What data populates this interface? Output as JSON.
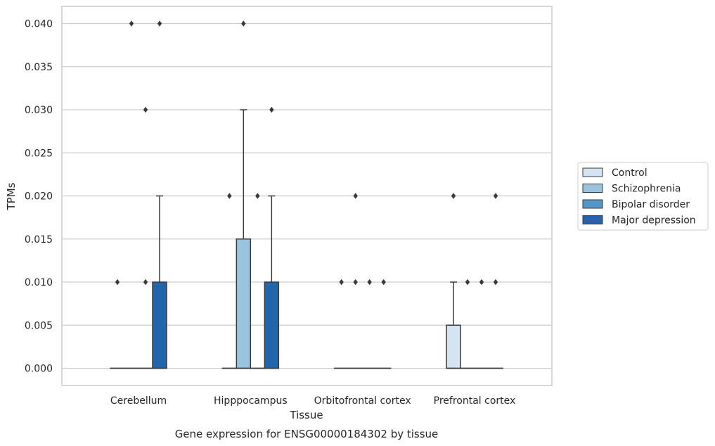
{
  "chart_data": {
    "type": "boxplot",
    "xlabel": "Tissue",
    "ylabel": "TPMs",
    "caption": "Gene expression for ENSG00000184302 by tissue",
    "ylim": [
      -0.002,
      0.042
    ],
    "yticks": [
      0.0,
      0.005,
      0.01,
      0.015,
      0.02,
      0.025,
      0.03,
      0.035,
      0.04
    ],
    "ytick_labels": [
      "0.000",
      "0.005",
      "0.010",
      "0.015",
      "0.020",
      "0.025",
      "0.030",
      "0.035",
      "0.040"
    ],
    "grid": true,
    "legend_position": "right",
    "categories": [
      "Cerebellum",
      "Hipppocampus",
      "Orbitofrontal cortex",
      "Prefrontal cortex"
    ],
    "series": [
      {
        "name": "Control",
        "color": "#d4e4f3"
      },
      {
        "name": "Schizophrenia",
        "color": "#9ac4de"
      },
      {
        "name": "Bipolar disorder",
        "color": "#5497c8"
      },
      {
        "name": "Major depression",
        "color": "#2166ac"
      }
    ],
    "boxes": [
      [
        {
          "q1": 0,
          "median": 0,
          "q3": 0,
          "whisker_low": 0,
          "whisker_high": 0,
          "outliers": [
            0.01
          ]
        },
        {
          "q1": 0,
          "median": 0,
          "q3": 0,
          "whisker_low": 0,
          "whisker_high": 0,
          "outliers": [
            0.04
          ]
        },
        {
          "q1": 0,
          "median": 0,
          "q3": 0,
          "whisker_low": 0,
          "whisker_high": 0,
          "outliers": [
            0.01,
            0.03
          ]
        },
        {
          "q1": 0,
          "median": 0,
          "q3": 0.01,
          "whisker_low": 0,
          "whisker_high": 0.02,
          "outliers": [
            0.04
          ]
        }
      ],
      [
        {
          "q1": 0,
          "median": 0,
          "q3": 0,
          "whisker_low": 0,
          "whisker_high": 0,
          "outliers": [
            0.02
          ]
        },
        {
          "q1": 0,
          "median": 0,
          "q3": 0.015,
          "whisker_low": 0,
          "whisker_high": 0.03,
          "outliers": [
            0.04
          ]
        },
        {
          "q1": 0,
          "median": 0,
          "q3": 0,
          "whisker_low": 0,
          "whisker_high": 0,
          "outliers": [
            0.02
          ]
        },
        {
          "q1": 0,
          "median": 0,
          "q3": 0.01,
          "whisker_low": 0,
          "whisker_high": 0.02,
          "outliers": [
            0.03
          ]
        }
      ],
      [
        {
          "q1": 0,
          "median": 0,
          "q3": 0,
          "whisker_low": 0,
          "whisker_high": 0,
          "outliers": [
            0.01
          ]
        },
        {
          "q1": 0,
          "median": 0,
          "q3": 0,
          "whisker_low": 0,
          "whisker_high": 0,
          "outliers": [
            0.01,
            0.02
          ]
        },
        {
          "q1": 0,
          "median": 0,
          "q3": 0,
          "whisker_low": 0,
          "whisker_high": 0,
          "outliers": [
            0.01
          ]
        },
        {
          "q1": 0,
          "median": 0,
          "q3": 0,
          "whisker_low": 0,
          "whisker_high": 0,
          "outliers": [
            0.01
          ]
        }
      ],
      [
        {
          "q1": 0,
          "median": 0,
          "q3": 0.005,
          "whisker_low": 0,
          "whisker_high": 0.01,
          "outliers": [
            0.02
          ]
        },
        {
          "q1": 0,
          "median": 0,
          "q3": 0,
          "whisker_low": 0,
          "whisker_high": 0,
          "outliers": [
            0.01
          ]
        },
        {
          "q1": 0,
          "median": 0,
          "q3": 0,
          "whisker_low": 0,
          "whisker_high": 0,
          "outliers": [
            0.01
          ]
        },
        {
          "q1": 0,
          "median": 0,
          "q3": 0,
          "whisker_low": 0,
          "whisker_high": 0,
          "outliers": [
            0.01,
            0.02
          ]
        }
      ]
    ]
  }
}
